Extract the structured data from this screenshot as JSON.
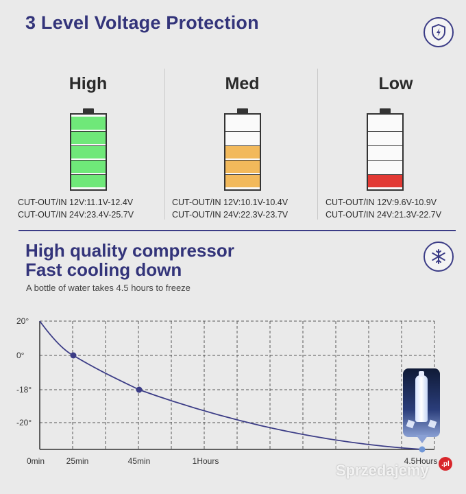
{
  "header": {
    "title": "3 Level Voltage Protection"
  },
  "levels": [
    {
      "name": "High",
      "fill_color": "#6fe879",
      "filled_cells": 5,
      "total_cells": 5,
      "cutout_12v": "CUT-OUT/IN 12V:11.1V-12.4V",
      "cutout_24v": "CUT-OUT/IN 24V:23.4V-25.7V"
    },
    {
      "name": "Med",
      "fill_color": "#f2b95b",
      "filled_cells": 3,
      "total_cells": 5,
      "cutout_12v": "CUT-OUT/IN 12V:10.1V-10.4V",
      "cutout_24v": "CUT-OUT/IN 24V:22.3V-23.7V"
    },
    {
      "name": "Low",
      "fill_color": "#e23a34",
      "filled_cells": 1,
      "total_cells": 5,
      "cutout_12v": "CUT-OUT/IN 12V:9.6V-10.9V",
      "cutout_24v": "CUT-OUT/IN 24V:21.3V-22.7V"
    }
  ],
  "compressor": {
    "line1": "High quality compressor",
    "line2": "Fast cooling down",
    "subtitle": "A bottle of water takes 4.5 hours to freeze"
  },
  "icons": {
    "voltage": "shield-bolt-icon",
    "cooling": "snowflake-icon"
  },
  "colors": {
    "brand": "#33347a",
    "curve": "#3b3c86",
    "grid": "#555555"
  },
  "chart_data": {
    "type": "line",
    "title": "",
    "xlabel": "",
    "ylabel": "",
    "x_tick_labels": [
      "0min",
      "25min",
      "45min",
      "1Hours",
      "4.5Hours"
    ],
    "y_tick_labels": [
      "20°",
      "0°",
      "-18°",
      "-20°"
    ],
    "series": [
      {
        "x": [
          "0min",
          "25min",
          "45min",
          "4.5Hours"
        ],
        "y_label": [
          "20°",
          "0°",
          "-18°",
          "below -20°"
        ]
      }
    ],
    "markers": [
      "25min",
      "45min",
      "4.5Hours"
    ],
    "grid": true,
    "grid_style": "dashed"
  },
  "watermark": {
    "text": "Sprzedajemy",
    "suffix": ".pl"
  }
}
